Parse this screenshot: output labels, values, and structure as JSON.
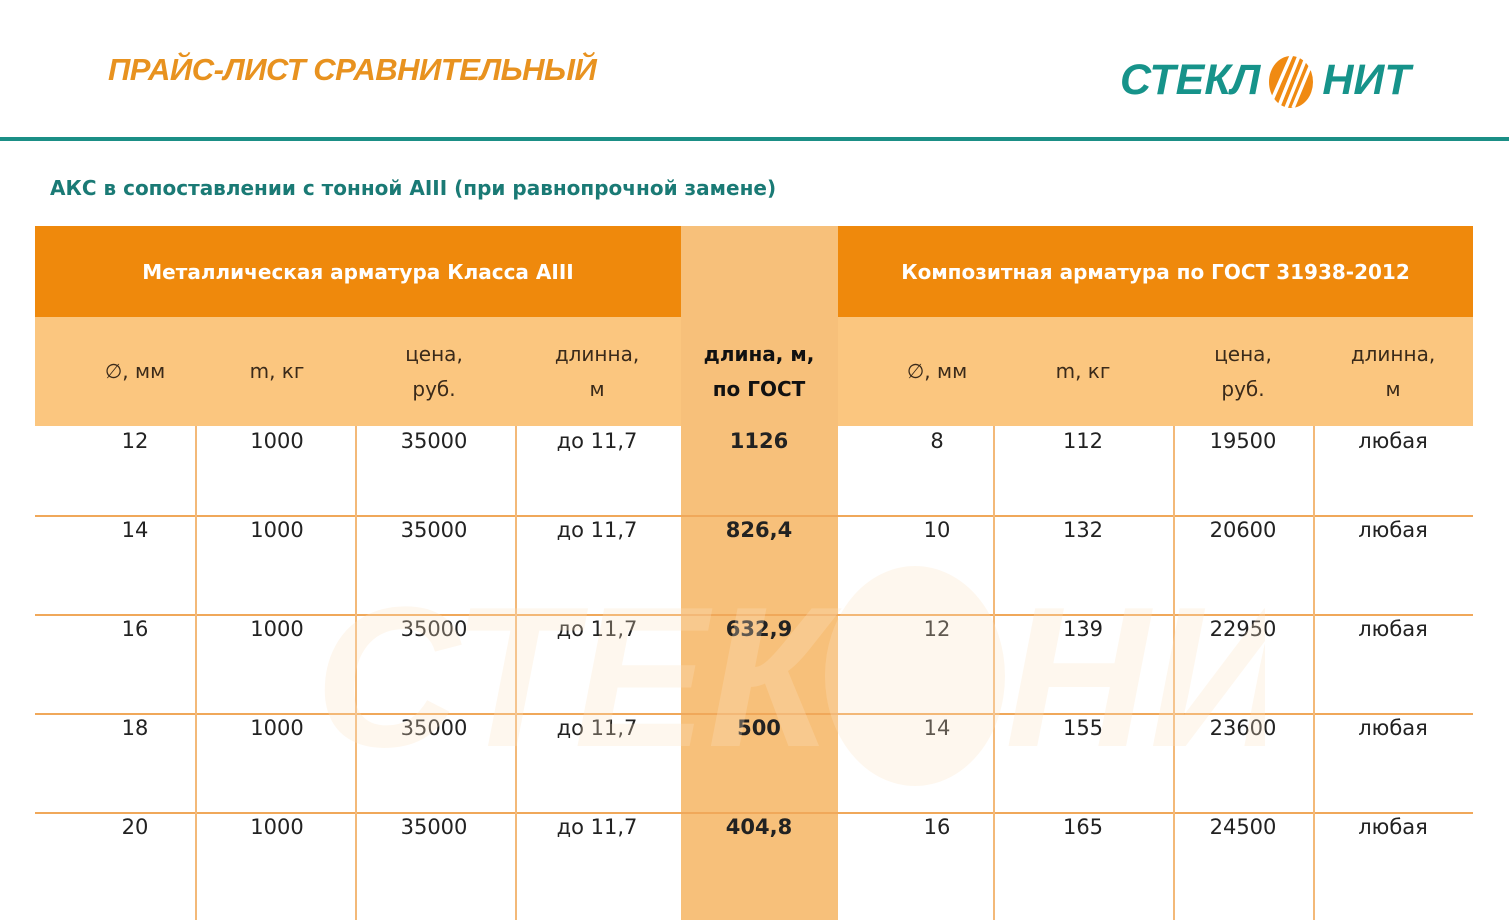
{
  "header": {
    "title": "ПРАЙС-ЛИСТ СРАВНИТЕЛЬНЫЙ",
    "logo_left": "СТЕКЛ",
    "logo_right": "НИТ"
  },
  "subtitle": "АКС в сопоставлении с тонной АIII  (при равнопрочной замене)",
  "table": {
    "group_left": "Металлическая  арматура  Класса АIII",
    "group_right": "Композитная арматура по ГОСТ 31938-2012",
    "columns": [
      "∅, мм",
      "m, кг",
      "цена,\nруб.",
      "длинна,\nм",
      "длина, м,\nпо ГОСТ",
      "∅, мм",
      "m, кг",
      "цена,\nруб.",
      "длинна,\nм"
    ],
    "rows": [
      [
        "12",
        "1000",
        "35000",
        "до 11,7",
        "1126",
        "8",
        "112",
        "19500",
        "любая"
      ],
      [
        "14",
        "1000",
        "35000",
        "до 11,7",
        "826,4",
        "10",
        "132",
        "20600",
        "любая"
      ],
      [
        "16",
        "1000",
        "35000",
        "до 11,7",
        "632,9",
        "12",
        "139",
        "22950",
        "любая"
      ],
      [
        "18",
        "1000",
        "35000",
        "до 11,7",
        "500",
        "14",
        "155",
        "23600",
        "любая"
      ],
      [
        "20",
        "1000",
        "35000",
        "до 11,7",
        "404,8",
        "16",
        "165",
        "24500",
        "любая"
      ]
    ]
  },
  "colors": {
    "accent_orange": "#ef890c",
    "title_orange": "#e8921f",
    "teal": "#16938a"
  }
}
